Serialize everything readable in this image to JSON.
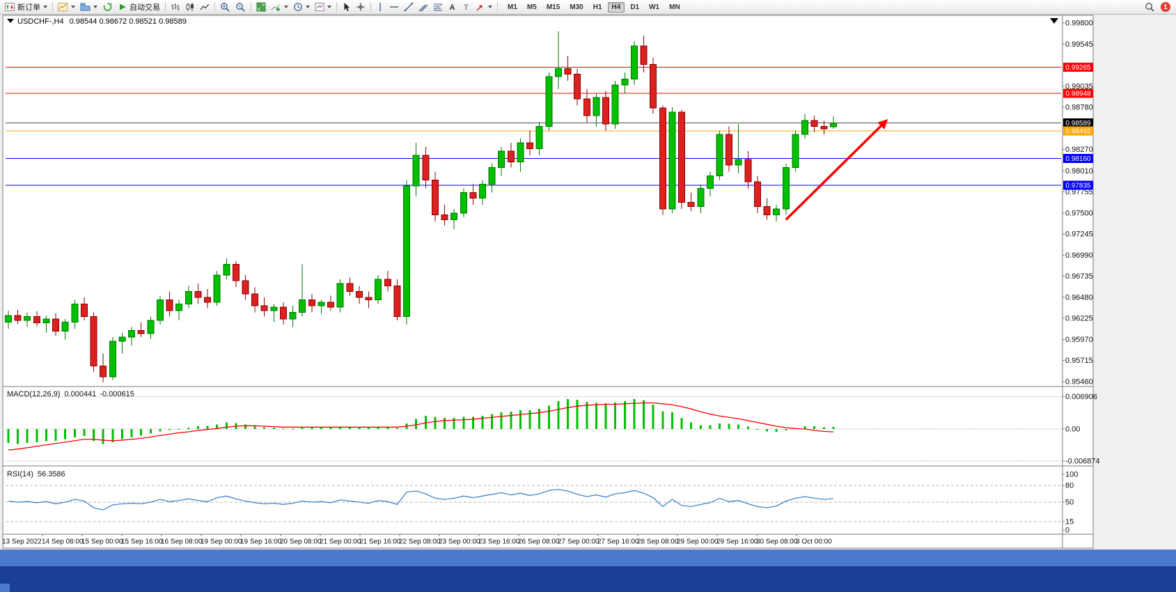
{
  "toolbar": {
    "new_order_label": "新订单",
    "autotrading_label": "自动交易",
    "timeframes": [
      "M1",
      "M5",
      "M15",
      "M30",
      "H1",
      "H4",
      "D1",
      "W1",
      "MN"
    ],
    "active_timeframe": "H4",
    "notification_badge": "1",
    "tool_glyphs": {
      "text": "A",
      "label": "T"
    }
  },
  "chart": {
    "symbol": "USDCHF-,H4",
    "ohlc": "0.98544 0.98672 0.98521 0.98589"
  },
  "chart_data": [
    {
      "type": "candlestick",
      "title": "USDCHF-,H4",
      "open": "0.98544",
      "high": "0.98672",
      "low": "0.98521",
      "close": "0.98589",
      "bull_color": "#00C000",
      "bear_color": "#DD2020",
      "y_range": [
        0.9546,
        0.998
      ],
      "y_ticks": [
        "0.99800",
        "0.99545",
        "0.99035",
        "0.98780",
        "0.98270",
        "0.98010",
        "0.97755",
        "0.97500",
        "0.97245",
        "0.96990",
        "0.96735",
        "0.96480",
        "0.96225",
        "0.95970",
        "0.95715",
        "0.95460"
      ],
      "levels": [
        {
          "price": 0.99265,
          "label": "0.99265",
          "color": "#FF0000"
        },
        {
          "price": 0.98948,
          "label": "0.98948",
          "color": "#FF0000"
        },
        {
          "price": 0.98589,
          "label": "0.98589",
          "color": "#000000",
          "line_color": "#4a4a4a"
        },
        {
          "price": 0.98492,
          "label": "0.98492",
          "color": "#FFA500"
        },
        {
          "price": 0.9816,
          "label": "0.98160",
          "color": "#0000FF"
        },
        {
          "price": 0.97835,
          "label": "0.97835",
          "color": "#0000FF"
        }
      ],
      "candles_ohlc": [
        [
          0.9618,
          0.9632,
          0.961,
          0.9626
        ],
        [
          0.9626,
          0.9633,
          0.9616,
          0.962
        ],
        [
          0.962,
          0.963,
          0.9612,
          0.9625
        ],
        [
          0.9625,
          0.9631,
          0.9613,
          0.9617
        ],
        [
          0.9617,
          0.9626,
          0.9605,
          0.9622
        ],
        [
          0.9622,
          0.9629,
          0.9601,
          0.9607
        ],
        [
          0.9607,
          0.9622,
          0.9597,
          0.9618
        ],
        [
          0.9618,
          0.9645,
          0.961,
          0.964
        ],
        [
          0.964,
          0.9648,
          0.962,
          0.9625
        ],
        [
          0.9625,
          0.963,
          0.9558,
          0.9565
        ],
        [
          0.9565,
          0.958,
          0.9545,
          0.9552
        ],
        [
          0.9552,
          0.96,
          0.9548,
          0.9595
        ],
        [
          0.9595,
          0.9605,
          0.958,
          0.96
        ],
        [
          0.96,
          0.9612,
          0.959,
          0.9608
        ],
        [
          0.9608,
          0.9618,
          0.96,
          0.9604
        ],
        [
          0.9604,
          0.9625,
          0.9598,
          0.962
        ],
        [
          0.962,
          0.965,
          0.9615,
          0.9645
        ],
        [
          0.9645,
          0.9655,
          0.9625,
          0.9632
        ],
        [
          0.9632,
          0.9645,
          0.962,
          0.964
        ],
        [
          0.964,
          0.9662,
          0.9635,
          0.9655
        ],
        [
          0.9655,
          0.9665,
          0.964,
          0.9648
        ],
        [
          0.9648,
          0.9658,
          0.9635,
          0.9642
        ],
        [
          0.9642,
          0.968,
          0.9638,
          0.9675
        ],
        [
          0.9675,
          0.9695,
          0.967,
          0.9688
        ],
        [
          0.9688,
          0.9692,
          0.966,
          0.9668
        ],
        [
          0.9668,
          0.9675,
          0.9645,
          0.9652
        ],
        [
          0.9652,
          0.966,
          0.963,
          0.9638
        ],
        [
          0.9638,
          0.9648,
          0.9625,
          0.9632
        ],
        [
          0.9632,
          0.964,
          0.9618,
          0.9636
        ],
        [
          0.9636,
          0.9642,
          0.9615,
          0.9622
        ],
        [
          0.9622,
          0.9638,
          0.9612,
          0.963
        ],
        [
          0.963,
          0.9688,
          0.9625,
          0.9645
        ],
        [
          0.9645,
          0.9652,
          0.963,
          0.9638
        ],
        [
          0.9638,
          0.9645,
          0.9628,
          0.9642
        ],
        [
          0.9642,
          0.965,
          0.9632,
          0.9636
        ],
        [
          0.9636,
          0.967,
          0.963,
          0.9665
        ],
        [
          0.9665,
          0.9672,
          0.965,
          0.9655
        ],
        [
          0.9655,
          0.9662,
          0.964,
          0.9648
        ],
        [
          0.9648,
          0.9655,
          0.9635,
          0.9645
        ],
        [
          0.9645,
          0.9675,
          0.964,
          0.967
        ],
        [
          0.967,
          0.968,
          0.9655,
          0.9662
        ],
        [
          0.9662,
          0.967,
          0.962,
          0.9625
        ],
        [
          0.9625,
          0.979,
          0.9615,
          0.9783
        ],
        [
          0.9783,
          0.9835,
          0.977,
          0.982
        ],
        [
          0.982,
          0.983,
          0.978,
          0.979
        ],
        [
          0.979,
          0.98,
          0.974,
          0.9748
        ],
        [
          0.9748,
          0.976,
          0.9735,
          0.9742
        ],
        [
          0.9742,
          0.9755,
          0.973,
          0.975
        ],
        [
          0.975,
          0.978,
          0.9745,
          0.9775
        ],
        [
          0.9775,
          0.9785,
          0.976,
          0.9768
        ],
        [
          0.9768,
          0.979,
          0.976,
          0.9785
        ],
        [
          0.9785,
          0.981,
          0.9775,
          0.9805
        ],
        [
          0.9805,
          0.983,
          0.9795,
          0.9825
        ],
        [
          0.9825,
          0.9835,
          0.9805,
          0.9812
        ],
        [
          0.9812,
          0.984,
          0.98,
          0.9835
        ],
        [
          0.9835,
          0.985,
          0.982,
          0.9828
        ],
        [
          0.9828,
          0.986,
          0.982,
          0.9855
        ],
        [
          0.9855,
          0.992,
          0.985,
          0.9915
        ],
        [
          0.9915,
          0.997,
          0.99,
          0.9925
        ],
        [
          0.9925,
          0.994,
          0.991,
          0.9918
        ],
        [
          0.9918,
          0.9925,
          0.988,
          0.9888
        ],
        [
          0.9888,
          0.99,
          0.986,
          0.9868
        ],
        [
          0.9868,
          0.9895,
          0.9855,
          0.989
        ],
        [
          0.989,
          0.9898,
          0.985,
          0.9858
        ],
        [
          0.9858,
          0.991,
          0.9852,
          0.9905
        ],
        [
          0.9905,
          0.992,
          0.9895,
          0.9912
        ],
        [
          0.9912,
          0.9958,
          0.9905,
          0.9952
        ],
        [
          0.9952,
          0.9965,
          0.992,
          0.993
        ],
        [
          0.993,
          0.9938,
          0.987,
          0.9877
        ],
        [
          0.9877,
          0.988,
          0.9748,
          0.9755
        ],
        [
          0.9755,
          0.9878,
          0.975,
          0.9872
        ],
        [
          0.9872,
          0.9875,
          0.9755,
          0.9763
        ],
        [
          0.9763,
          0.9775,
          0.9752,
          0.9758
        ],
        [
          0.9758,
          0.9785,
          0.975,
          0.978
        ],
        [
          0.978,
          0.98,
          0.977,
          0.9795
        ],
        [
          0.9795,
          0.985,
          0.979,
          0.9845
        ],
        [
          0.9845,
          0.9855,
          0.98,
          0.9808
        ],
        [
          0.9808,
          0.9858,
          0.9798,
          0.9815
        ],
        [
          0.9815,
          0.9825,
          0.978,
          0.9788
        ],
        [
          0.9788,
          0.9795,
          0.975,
          0.9758
        ],
        [
          0.9758,
          0.9768,
          0.9742,
          0.9748
        ],
        [
          0.9748,
          0.976,
          0.974,
          0.9755
        ],
        [
          0.9755,
          0.981,
          0.9748,
          0.9805
        ],
        [
          0.9805,
          0.985,
          0.98,
          0.9845
        ],
        [
          0.9845,
          0.987,
          0.984,
          0.9862
        ],
        [
          0.9862,
          0.9868,
          0.9848,
          0.9855
        ],
        [
          0.9855,
          0.9862,
          0.9845,
          0.9852
        ],
        [
          0.98544,
          0.98672,
          0.98521,
          0.98589
        ]
      ],
      "x_labels": [
        "13 Sep 2022",
        "14 Sep 08:00",
        "15 Sep 00:00",
        "15 Sep 16:00",
        "16 Sep 08:00",
        "19 Sep 00:00",
        "19 Sep 16:00",
        "20 Sep 08:00",
        "21 Sep 00:00",
        "21 Sep 16:00",
        "22 Sep 08:00",
        "23 Sep 00:00",
        "23 Sep 16:00",
        "26 Sep 08:00",
        "27 Sep 00:00",
        "27 Sep 16:00",
        "28 Sep 08:00",
        "29 Sep 00:00",
        "29 Sep 16:00",
        "30 Sep 08:00",
        "3 Oct 00:00"
      ],
      "annotation_arrow": {
        "color": "#FF0000",
        "bar1": 82,
        "price1": 0.9742,
        "bar2": 92.6,
        "price2": 0.9862
      }
    },
    {
      "type": "macd_histogram",
      "label": "MACD(12,26,9)",
      "main_value": "0.000441",
      "signal_value": "-0.000615",
      "histogram_color": "#00C000",
      "signal_color": "#FF0000",
      "y_ticks": [
        "0.006906",
        "0.00",
        "-0.006874"
      ],
      "histogram": [
        -0.003,
        -0.0032,
        -0.003,
        -0.0028,
        -0.0026,
        -0.0025,
        -0.0022,
        -0.0018,
        -0.0015,
        -0.0025,
        -0.0032,
        -0.0028,
        -0.0022,
        -0.0018,
        -0.0014,
        -0.001,
        -0.0005,
        -0.0002,
        0.0,
        0.0003,
        0.0006,
        0.0007,
        0.001,
        0.0014,
        0.0013,
        0.001,
        0.0007,
        0.0004,
        0.0003,
        0.0001,
        0.0001,
        0.0004,
        0.0004,
        0.0004,
        0.0003,
        0.0005,
        0.0005,
        0.0004,
        0.0003,
        0.0005,
        0.0005,
        0.0002,
        0.0012,
        0.0022,
        0.0028,
        0.0026,
        0.0024,
        0.0024,
        0.0026,
        0.0026,
        0.0028,
        0.0032,
        0.0036,
        0.0037,
        0.004,
        0.004,
        0.0043,
        0.005,
        0.006,
        0.0064,
        0.0063,
        0.0058,
        0.0056,
        0.0055,
        0.0057,
        0.006,
        0.0064,
        0.0062,
        0.0052,
        0.0038,
        0.0036,
        0.0024,
        0.0014,
        0.0008,
        0.0008,
        0.0012,
        0.0011,
        0.001,
        0.0005,
        -0.0001,
        -0.0005,
        -0.0006,
        -0.0003,
        0.0002,
        0.0006,
        0.0006,
        0.0004,
        0.000441
      ],
      "signal": [
        -0.0045,
        -0.0043,
        -0.004,
        -0.0037,
        -0.0034,
        -0.0031,
        -0.0028,
        -0.0025,
        -0.0022,
        -0.0022,
        -0.0024,
        -0.0025,
        -0.0024,
        -0.0022,
        -0.002,
        -0.0017,
        -0.0014,
        -0.0011,
        -0.0008,
        -0.0006,
        -0.0003,
        -0.0001,
        0.0001,
        0.0004,
        0.0006,
        0.0007,
        0.0007,
        0.0006,
        0.0005,
        0.0004,
        0.0004,
        0.0004,
        0.0004,
        0.0004,
        0.0004,
        0.0004,
        0.0004,
        0.0004,
        0.0004,
        0.0004,
        0.0004,
        0.0004,
        0.0006,
        0.0009,
        0.0013,
        0.0016,
        0.0018,
        0.0019,
        0.002,
        0.0021,
        0.0023,
        0.0025,
        0.0027,
        0.0029,
        0.0031,
        0.0033,
        0.0035,
        0.0038,
        0.0042,
        0.0046,
        0.0049,
        0.0051,
        0.0052,
        0.0053,
        0.0053,
        0.0054,
        0.0055,
        0.0056,
        0.0056,
        0.0054,
        0.0052,
        0.0048,
        0.0043,
        0.0037,
        0.0032,
        0.0028,
        0.0025,
        0.0022,
        0.0018,
        0.0014,
        0.001,
        0.0006,
        0.0003,
        0.0001,
        0.0,
        -0.0003,
        -0.0005,
        -0.000615
      ]
    },
    {
      "type": "line",
      "label": "RSI(14)",
      "value": "56.3586",
      "line_color": "#3E86C8",
      "levels": [
        80,
        50,
        15
      ],
      "y_ticks": [
        "100",
        "80",
        "50",
        "15",
        "0"
      ],
      "values": [
        52,
        50,
        51,
        49,
        51,
        47,
        50,
        55,
        52,
        40,
        36,
        45,
        47,
        48,
        47,
        50,
        55,
        51,
        53,
        56,
        53,
        51,
        58,
        61,
        56,
        52,
        49,
        47,
        48,
        46,
        48,
        52,
        50,
        51,
        49,
        54,
        52,
        50,
        48,
        53,
        51,
        46,
        68,
        70,
        65,
        57,
        55,
        57,
        61,
        58,
        61,
        64,
        67,
        63,
        66,
        62,
        65,
        71,
        73,
        70,
        64,
        60,
        63,
        59,
        65,
        67,
        71,
        66,
        58,
        42,
        55,
        44,
        42,
        46,
        49,
        57,
        51,
        53,
        47,
        42,
        40,
        43,
        52,
        57,
        60,
        57,
        55,
        56.36
      ]
    }
  ]
}
